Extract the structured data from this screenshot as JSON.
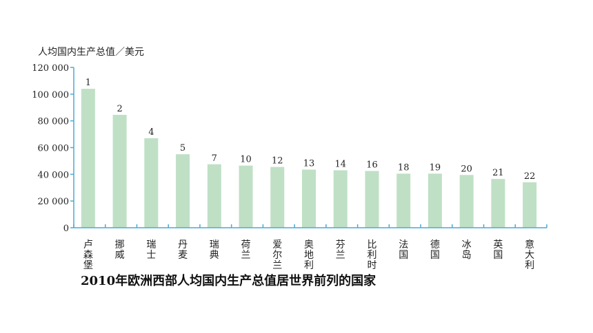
{
  "chart_data": {
    "type": "bar",
    "title": "2010年欧洲西部人均国内生产总值居世界前列的国家",
    "ylabel": "人均国内生产总值／美元",
    "xlabel": "",
    "ylim": [
      0,
      120000
    ],
    "yticks": [
      0,
      20000,
      40000,
      60000,
      80000,
      100000,
      120000
    ],
    "ytick_labels": [
      "0",
      "20 000",
      "40 000",
      "60 000",
      "80 000",
      "100 000",
      "120 000"
    ],
    "categories": [
      "卢森堡",
      "挪威",
      "瑞士",
      "丹麦",
      "瑞典",
      "荷兰",
      "爱尔兰",
      "奥地利",
      "芬兰",
      "比利时",
      "法国",
      "德国",
      "冰岛",
      "英国",
      "意大利"
    ],
    "values": [
      104000,
      84500,
      67000,
      55000,
      47500,
      46500,
      45500,
      43500,
      43000,
      42500,
      40500,
      40500,
      39500,
      36500,
      34000
    ],
    "ranks": [
      "1",
      "2",
      "4",
      "5",
      "7",
      "10",
      "12",
      "13",
      "14",
      "16",
      "18",
      "19",
      "20",
      "21",
      "22"
    ],
    "bar_color": "#bfe0c5",
    "axis_color": "#4aa9d6",
    "grid": false,
    "legend": "none"
  }
}
